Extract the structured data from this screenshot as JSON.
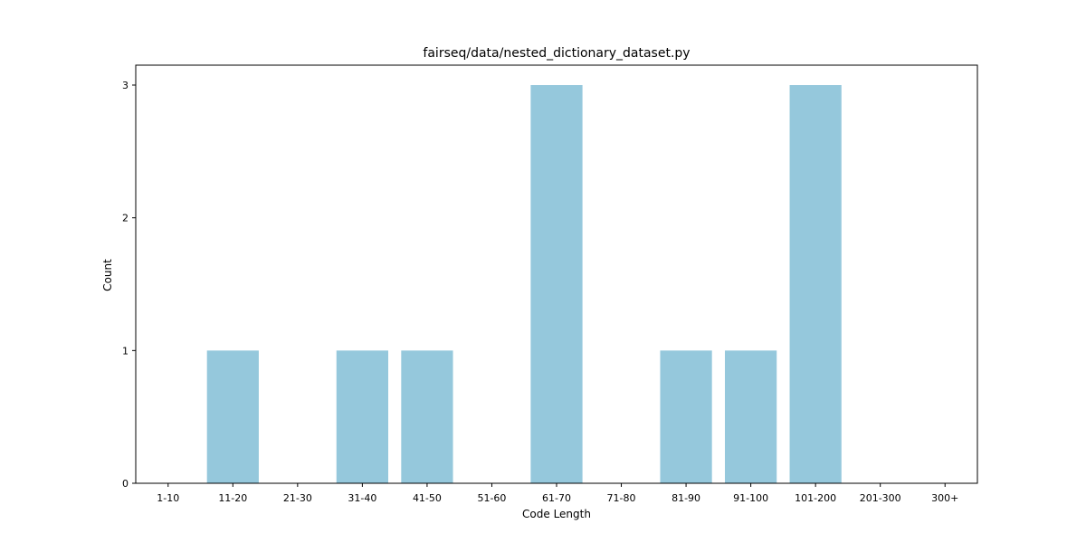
{
  "chart_data": {
    "type": "bar",
    "title": "fairseq/data/nested_dictionary_dataset.py",
    "xlabel": "Code Length",
    "ylabel": "Count",
    "categories": [
      "1-10",
      "11-20",
      "21-30",
      "31-40",
      "41-50",
      "51-60",
      "61-70",
      "71-80",
      "81-90",
      "91-100",
      "101-200",
      "201-300",
      "300+"
    ],
    "values": [
      0,
      1,
      0,
      1,
      1,
      0,
      3,
      0,
      1,
      1,
      3,
      0,
      0
    ],
    "ylim": [
      0,
      3.15
    ],
    "yticks": [
      "0",
      "1",
      "2",
      "3"
    ],
    "bar_color": "#95c8dc",
    "grid": false,
    "legend": false
  }
}
